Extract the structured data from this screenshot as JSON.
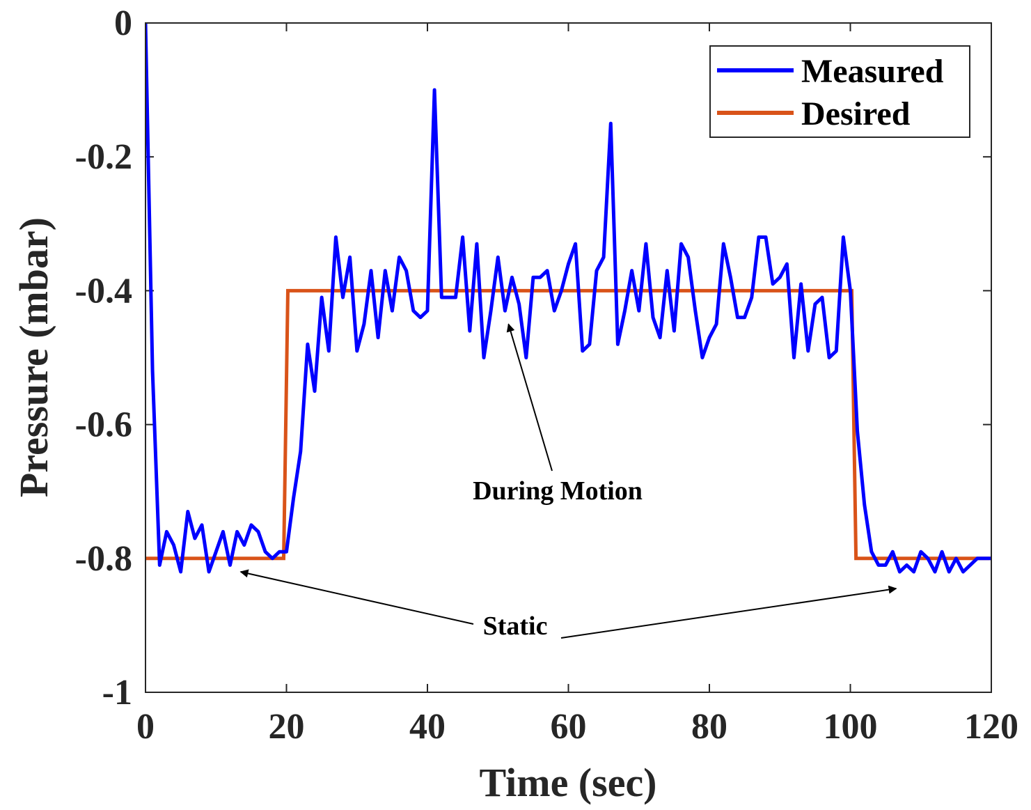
{
  "chart_data": {
    "type": "line",
    "title": "",
    "xlabel": "Time (sec)",
    "ylabel": "Pressure (mbar)",
    "xlim": [
      0,
      120
    ],
    "ylim": [
      -1,
      0
    ],
    "xticks": [
      0,
      20,
      40,
      60,
      80,
      100,
      120
    ],
    "xtick_labels": [
      "0",
      "20",
      "40",
      "60",
      "80",
      "100",
      "120"
    ],
    "yticks": [
      0,
      -0.2,
      -0.4,
      -0.6,
      -0.8,
      -1
    ],
    "ytick_labels": [
      "0",
      "-0.2",
      "-0.4",
      "-0.6",
      "-0.8",
      "-1"
    ],
    "grid": false,
    "legend_position": "top-right",
    "series": [
      {
        "name": "Measured",
        "color": "#0000ff",
        "x": [
          0,
          1,
          2,
          3,
          4,
          5,
          6,
          7,
          8,
          9,
          10,
          11,
          12,
          13,
          14,
          15,
          16,
          17,
          18,
          19,
          20,
          21,
          22,
          23,
          24,
          25,
          26,
          27,
          28,
          29,
          30,
          31,
          32,
          33,
          34,
          35,
          36,
          37,
          38,
          39,
          40,
          41,
          42,
          43,
          44,
          45,
          46,
          47,
          48,
          49,
          50,
          51,
          52,
          53,
          54,
          55,
          56,
          57,
          58,
          59,
          60,
          61,
          62,
          63,
          64,
          65,
          66,
          67,
          68,
          69,
          70,
          71,
          72,
          73,
          74,
          75,
          76,
          77,
          78,
          79,
          80,
          81,
          82,
          83,
          84,
          85,
          86,
          87,
          88,
          89,
          90,
          91,
          92,
          93,
          94,
          95,
          96,
          97,
          98,
          99,
          100,
          101,
          102,
          103,
          104,
          105,
          106,
          107,
          108,
          109,
          110,
          111,
          112,
          113,
          114,
          115,
          116,
          117,
          118,
          119,
          120
        ],
        "values": [
          0,
          -0.52,
          -0.81,
          -0.76,
          -0.78,
          -0.82,
          -0.73,
          -0.77,
          -0.75,
          -0.82,
          -0.79,
          -0.76,
          -0.81,
          -0.76,
          -0.78,
          -0.75,
          -0.76,
          -0.79,
          -0.8,
          -0.79,
          -0.79,
          -0.71,
          -0.64,
          -0.48,
          -0.55,
          -0.41,
          -0.49,
          -0.32,
          -0.41,
          -0.35,
          -0.49,
          -0.45,
          -0.37,
          -0.47,
          -0.37,
          -0.43,
          -0.35,
          -0.37,
          -0.43,
          -0.44,
          -0.43,
          -0.1,
          -0.41,
          -0.41,
          -0.41,
          -0.32,
          -0.46,
          -0.33,
          -0.5,
          -0.43,
          -0.35,
          -0.43,
          -0.38,
          -0.42,
          -0.5,
          -0.38,
          -0.38,
          -0.37,
          -0.43,
          -0.4,
          -0.36,
          -0.33,
          -0.49,
          -0.48,
          -0.37,
          -0.35,
          -0.15,
          -0.48,
          -0.43,
          -0.37,
          -0.43,
          -0.33,
          -0.44,
          -0.47,
          -0.37,
          -0.46,
          -0.33,
          -0.35,
          -0.43,
          -0.5,
          -0.47,
          -0.45,
          -0.33,
          -0.38,
          -0.44,
          -0.44,
          -0.41,
          -0.32,
          -0.32,
          -0.39,
          -0.38,
          -0.36,
          -0.5,
          -0.39,
          -0.49,
          -0.42,
          -0.41,
          -0.5,
          -0.49,
          -0.32,
          -0.4,
          -0.61,
          -0.72,
          -0.79,
          -0.81,
          -0.81,
          -0.79,
          -0.82,
          -0.81,
          -0.82,
          -0.79,
          -0.8,
          -0.82,
          -0.79,
          -0.82,
          -0.8,
          -0.82,
          -0.81,
          -0.8,
          -0.8,
          -0.8
        ]
      },
      {
        "name": "Desired",
        "color": "#d95319",
        "x": [
          0,
          19.6,
          20.2,
          100.2,
          100.8,
          120
        ],
        "values": [
          -0.8,
          -0.8,
          -0.4,
          -0.4,
          -0.8,
          -0.8
        ]
      }
    ],
    "annotations": [
      {
        "text": "During Motion",
        "arrow_to": [
          51.5,
          -0.45
        ]
      },
      {
        "text": "Static",
        "arrow_to": [
          [
            13.5,
            -0.82
          ],
          [
            106.5,
            -0.845
          ]
        ]
      }
    ]
  }
}
